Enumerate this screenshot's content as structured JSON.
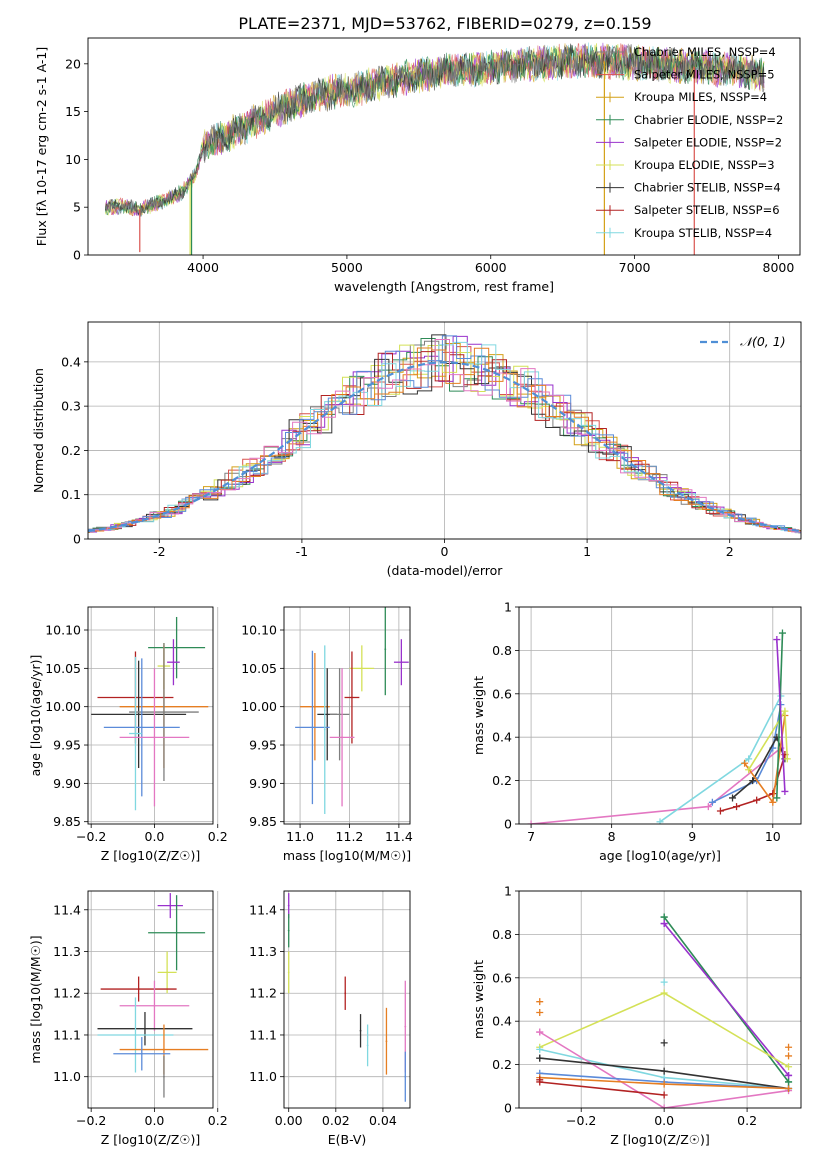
{
  "figure": {
    "title": "PLATE=2371, MJD=53762, FIBERID=0279, z=0.159"
  },
  "colors": {
    "Chabrier MILES": "#7f7f7f",
    "Salpeter MILES": "#d9534f",
    "Kroupa MILES": "#d4a017",
    "Chabrier ELODIE": "#2e8b57",
    "Salpeter ELODIE": "#9932cc",
    "Kroupa ELODIE": "#d4e157",
    "Chabrier STELIB": "#333333",
    "Salpeter STELIB": "#b22222",
    "Kroupa STELIB": "#80d8e0",
    "extra_blue": "#5b8bd9",
    "extra_orange": "#e67e22",
    "extra_pink": "#e377c2",
    "normal_curve": "#4f8fd6"
  },
  "chart_data": [
    {
      "id": "spectrum",
      "type": "line",
      "title": "PLATE=2371, MJD=53762, FIBERID=0279, z=0.159",
      "xlabel": "wavelength [Angstrom, rest frame]",
      "ylabel": "Flux [f_λ 10^-17 erg cm^-2 s^-1 A^-1]",
      "xlim": [
        3200,
        8150
      ],
      "ylim": [
        0,
        22.7
      ],
      "xticks": [
        4000,
        5000,
        6000,
        7000,
        8000
      ],
      "yticks": [
        0,
        5,
        10,
        15,
        20
      ],
      "legend_position": "top-right",
      "legend": [
        {
          "label": "Chabrier MILES, N_SSP=4",
          "color": "#7f7f7f"
        },
        {
          "label": "Salpeter MILES, N_SSP=5",
          "color": "#d9534f"
        },
        {
          "label": "Kroupa MILES, N_SSP=4",
          "color": "#d4a017"
        },
        {
          "label": "Chabrier ELODIE, N_SSP=2",
          "color": "#2e8b57"
        },
        {
          "label": "Salpeter ELODIE, N_SSP=2",
          "color": "#9932cc"
        },
        {
          "label": "Kroupa ELODIE, N_SSP=3",
          "color": "#d4e157"
        },
        {
          "label": "Chabrier STELIB, N_SSP=4",
          "color": "#333333"
        },
        {
          "label": "Salpeter STELIB, N_SSP=6",
          "color": "#b22222"
        },
        {
          "label": "Kroupa STELIB, N_SSP=4",
          "color": "#80d8e0"
        }
      ],
      "continuum": {
        "x": [
          3320,
          3450,
          3560,
          3700,
          3850,
          3950,
          4000,
          4100,
          4300,
          4500,
          4700,
          4900,
          5100,
          5300,
          5500,
          5700,
          5900,
          6100,
          6300,
          6500,
          6700,
          6900,
          7100,
          7300,
          7500,
          7700,
          7900
        ],
        "y": [
          5.0,
          5.1,
          4.8,
          5.5,
          6.5,
          8.5,
          11.5,
          12.0,
          13.5,
          15.0,
          16.3,
          17.0,
          17.5,
          18.2,
          18.8,
          19.3,
          19.5,
          19.8,
          20.0,
          20.2,
          20.3,
          20.2,
          20.0,
          19.8,
          19.6,
          19.3,
          18.8
        ]
      },
      "spikes": [
        {
          "x": 3560,
          "y": 0.3,
          "color": "#d9534f"
        },
        {
          "x": 3910,
          "y": 0.0,
          "color": "#d4e157"
        },
        {
          "x": 3920,
          "y": 0.0,
          "color": "#2e8b57"
        },
        {
          "x": 6790,
          "y": 0.0,
          "color": "#d4a017"
        },
        {
          "x": 7415,
          "y": 0.0,
          "color": "#d9534f"
        }
      ]
    },
    {
      "id": "residuals",
      "type": "bar",
      "xlabel": "(data-model)/error",
      "ylabel": "Normed distribution",
      "xlim": [
        -2.5,
        2.5
      ],
      "ylim": [
        0,
        0.49
      ],
      "xticks": [
        -2,
        -1,
        0,
        1,
        2
      ],
      "yticks": [
        0.0,
        0.1,
        0.2,
        0.3,
        0.4
      ],
      "grid": true,
      "legend_position": "top-right",
      "legend": [
        {
          "label": "𝒩(0, 1)",
          "color": "#4f8fd6",
          "style": "dashed"
        }
      ],
      "bin_width": 0.1,
      "normal": {
        "mean": 0,
        "sd": 1
      }
    },
    {
      "id": "age_vs_Z",
      "type": "scatter",
      "xlabel": "Z [log10(Z/Z☉)]",
      "ylabel": "age [log10(age/yr)]",
      "xlim": [
        -0.21,
        0.185
      ],
      "ylim": [
        9.847,
        10.13
      ],
      "xticks": [
        -0.2,
        0.0,
        0.2
      ],
      "xticklabels": [
        "−0.2",
        "0.0",
        "0.2"
      ],
      "yticks": [
        9.85,
        9.9,
        9.95,
        10.0,
        10.05,
        10.1
      ],
      "yticklabels": [
        "9.85",
        "9.90",
        "9.95",
        "10.00",
        "10.05",
        "10.10"
      ],
      "grid": true,
      "points": [
        {
          "series": "Chabrier ELODIE",
          "color": "#2e8b57",
          "x": 0.07,
          "xerr": 0.09,
          "y": 10.077,
          "yerr": 0.04
        },
        {
          "series": "Salpeter ELODIE",
          "color": "#9932cc",
          "x": 0.06,
          "xerr": 0.02,
          "y": 10.058,
          "yerr": 0.03
        },
        {
          "series": "Kroupa ELODIE",
          "color": "#d4e157",
          "x": 0.03,
          "xerr": 0.02,
          "y": 10.053,
          "yerr": 0.03
        },
        {
          "series": "Salpeter STELIB",
          "color": "#b22222",
          "x": -0.06,
          "xerr": 0.12,
          "y": 10.012,
          "yerr": 0.06
        },
        {
          "series": "Salpeter MILES",
          "color": "#e67e22",
          "x": 0.03,
          "xerr": 0.14,
          "y": 10.0,
          "yerr": 0.08
        },
        {
          "series": "Chabrier STELIB",
          "color": "#333333",
          "x": -0.05,
          "xerr": 0.15,
          "y": 9.99,
          "yerr": 0.07
        },
        {
          "series": "Chabrier MILES",
          "color": "#7f7f7f",
          "x": 0.03,
          "xerr": 0.11,
          "y": 9.993,
          "yerr": 0.09
        },
        {
          "series": "Kroupa MILES",
          "color": "#5b8bd9",
          "x": -0.04,
          "xerr": 0.12,
          "y": 9.973,
          "yerr": 0.09
        },
        {
          "series": "Kroupa STELIB",
          "color": "#80d8e0",
          "x": -0.06,
          "xerr": 0.02,
          "y": 9.965,
          "yerr": 0.1
        },
        {
          "series": "extra",
          "color": "#e377c2",
          "x": 0.0,
          "xerr": 0.11,
          "y": 9.96,
          "yerr": 0.09
        }
      ]
    },
    {
      "id": "age_vs_mass",
      "type": "scatter",
      "xlabel": "mass [log10(M/M☉)]",
      "ylabel": "",
      "xlim": [
        10.935,
        11.445
      ],
      "ylim": [
        9.847,
        10.13
      ],
      "xticks": [
        11.0,
        11.2,
        11.4
      ],
      "xticklabels": [
        "11.0",
        "11.2",
        "11.4"
      ],
      "yticks": [
        9.85,
        9.9,
        9.95,
        10.0,
        10.05,
        10.1
      ],
      "yticklabels": [
        "9.85",
        "9.90",
        "9.95",
        "10.00",
        "10.05",
        "10.10"
      ],
      "grid": true,
      "points": [
        {
          "color": "#2e8b57",
          "x": 11.345,
          "xerr": 0.0,
          "y": 10.075,
          "yerr": 0.06
        },
        {
          "color": "#9932cc",
          "x": 11.41,
          "xerr": 0.03,
          "y": 10.058,
          "yerr": 0.03
        },
        {
          "color": "#d4e157",
          "x": 11.25,
          "xerr": 0.05,
          "y": 10.05,
          "yerr": 0.03
        },
        {
          "color": "#b22222",
          "x": 11.21,
          "xerr": 0.03,
          "y": 10.012,
          "yerr": 0.06
        },
        {
          "color": "#e67e22",
          "x": 11.06,
          "xerr": 0.06,
          "y": 10.0,
          "yerr": 0.07
        },
        {
          "color": "#333333",
          "x": 11.11,
          "xerr": 0.04,
          "y": 9.99,
          "yerr": 0.06
        },
        {
          "color": "#7f7f7f",
          "x": 11.16,
          "xerr": 0.04,
          "y": 9.99,
          "yerr": 0.06
        },
        {
          "color": "#5b8bd9",
          "x": 11.05,
          "xerr": 0.07,
          "y": 9.973,
          "yerr": 0.1
        },
        {
          "color": "#80d8e0",
          "x": 11.1,
          "xerr": 0.0,
          "y": 9.97,
          "yerr": 0.11
        },
        {
          "color": "#e377c2",
          "x": 11.17,
          "xerr": 0.05,
          "y": 9.96,
          "yerr": 0.09
        }
      ]
    },
    {
      "id": "weight_vs_age",
      "type": "line",
      "xlabel": "age [log10(age/yr)]",
      "ylabel": "mass weight",
      "xlim": [
        6.85,
        10.35
      ],
      "ylim": [
        0,
        1.0
      ],
      "xticks": [
        7,
        8,
        9,
        10
      ],
      "yticks": [
        0.0,
        0.2,
        0.4,
        0.6,
        0.8,
        1.0
      ],
      "grid": true,
      "series": [
        {
          "color": "#e377c2",
          "x": [
            7.0,
            9.2,
            10.1
          ],
          "y": [
            0.0,
            0.08,
            0.35
          ]
        },
        {
          "color": "#80d8e0",
          "x": [
            8.6,
            9.7,
            10.1
          ],
          "y": [
            0.01,
            0.3,
            0.59
          ]
        },
        {
          "color": "#5b8bd9",
          "x": [
            9.25,
            9.8,
            10.0,
            10.1
          ],
          "y": [
            0.1,
            0.2,
            0.35,
            0.55
          ]
        },
        {
          "color": "#333333",
          "x": [
            9.5,
            9.75,
            10.05,
            10.15
          ],
          "y": [
            0.12,
            0.2,
            0.4,
            0.3
          ]
        },
        {
          "color": "#b22222",
          "x": [
            9.35,
            9.55,
            9.8,
            10.0,
            10.15
          ],
          "y": [
            0.06,
            0.08,
            0.11,
            0.14,
            0.32
          ]
        },
        {
          "color": "#e67e22",
          "x": [
            9.65,
            10.0,
            10.15
          ],
          "y": [
            0.28,
            0.1,
            0.5
          ]
        },
        {
          "color": "#d4e157",
          "x": [
            9.7,
            10.15,
            10.18
          ],
          "y": [
            0.25,
            0.52,
            0.3
          ]
        },
        {
          "color": "#2e8b57",
          "x": [
            10.05,
            10.12
          ],
          "y": [
            0.12,
            0.88
          ]
        },
        {
          "color": "#9932cc",
          "x": [
            10.05,
            10.15
          ],
          "y": [
            0.85,
            0.15
          ]
        }
      ]
    },
    {
      "id": "mass_vs_Z",
      "type": "scatter",
      "xlabel": "Z [log10(Z/Z☉)]",
      "ylabel": "mass [log10(M/M☉)]",
      "xlim": [
        -0.21,
        0.185
      ],
      "ylim": [
        10.925,
        11.445
      ],
      "xticks": [
        -0.2,
        0.0,
        0.2
      ],
      "xticklabels": [
        "−0.2",
        "0.0",
        "0.2"
      ],
      "yticks": [
        11.0,
        11.1,
        11.2,
        11.3,
        11.4
      ],
      "yticklabels": [
        "11.0",
        "11.1",
        "11.2",
        "11.3",
        "11.4"
      ],
      "grid": true,
      "points": [
        {
          "color": "#9932cc",
          "x": 0.05,
          "xerr": 0.04,
          "y": 11.41,
          "yerr": 0.03
        },
        {
          "color": "#2e8b57",
          "x": 0.07,
          "xerr": 0.09,
          "y": 11.345,
          "yerr": 0.09
        },
        {
          "color": "#d4e157",
          "x": 0.04,
          "xerr": 0.03,
          "y": 11.25,
          "yerr": 0.05
        },
        {
          "color": "#b22222",
          "x": -0.05,
          "xerr": 0.12,
          "y": 11.21,
          "yerr": 0.03
        },
        {
          "color": "#e377c2",
          "x": 0.0,
          "xerr": 0.11,
          "y": 11.17,
          "yerr": 0.06
        },
        {
          "color": "#333333",
          "x": -0.03,
          "xerr": 0.15,
          "y": 11.115,
          "yerr": 0.04
        },
        {
          "color": "#80d8e0",
          "x": -0.06,
          "xerr": 0.12,
          "y": 11.1,
          "yerr": 0.09
        },
        {
          "color": "#e67e22",
          "x": 0.03,
          "xerr": 0.14,
          "y": 11.065,
          "yerr": 0.06
        },
        {
          "color": "#5b8bd9",
          "x": -0.04,
          "xerr": 0.09,
          "y": 11.055,
          "yerr": 0.04
        },
        {
          "color": "#7f7f7f",
          "x": 0.03,
          "xerr": 0.0,
          "y": 11.0,
          "yerr": 0.05
        }
      ]
    },
    {
      "id": "mass_vs_ebv",
      "type": "scatter",
      "xlabel": "E(B-V)",
      "ylabel": "",
      "xlim": [
        -0.002,
        0.0515
      ],
      "ylim": [
        10.925,
        11.445
      ],
      "xticks": [
        0.0,
        0.02,
        0.04
      ],
      "xticklabels": [
        "0.00",
        "0.02",
        "0.04"
      ],
      "yticks": [
        11.0,
        11.1,
        11.2,
        11.3,
        11.4
      ],
      "yticklabels": [
        "11.0",
        "11.1",
        "11.2",
        "11.3",
        "11.4"
      ],
      "grid": true,
      "points": [
        {
          "color": "#9932cc",
          "x": 0.0,
          "y": 11.41,
          "yerr": 0.03
        },
        {
          "color": "#2e8b57",
          "x": 0.0,
          "y": 11.35,
          "yerr": 0.04
        },
        {
          "color": "#d4e157",
          "x": 0.0,
          "y": 11.25,
          "yerr": 0.05
        },
        {
          "color": "#b22222",
          "x": 0.024,
          "y": 11.2,
          "yerr": 0.04
        },
        {
          "color": "#333333",
          "x": 0.0305,
          "y": 11.11,
          "yerr": 0.04
        },
        {
          "color": "#80d8e0",
          "x": 0.0335,
          "y": 11.075,
          "yerr": 0.05
        },
        {
          "color": "#e67e22",
          "x": 0.0415,
          "y": 11.085,
          "yerr": 0.08
        },
        {
          "color": "#e377c2",
          "x": 0.0495,
          "y": 11.12,
          "yerr": 0.11
        },
        {
          "color": "#5b8bd9",
          "x": 0.0495,
          "y": 11.0,
          "yerr": 0.06
        }
      ]
    },
    {
      "id": "weight_vs_Z",
      "type": "line",
      "xlabel": "Z [log10(Z/Z☉)]",
      "ylabel": "mass weight",
      "xlim": [
        -0.35,
        0.33
      ],
      "ylim": [
        0,
        1.0
      ],
      "xticks": [
        -0.2,
        0.0,
        0.2
      ],
      "xticklabels": [
        "−0.2",
        "0.0",
        "0.2"
      ],
      "yticks": [
        0.0,
        0.2,
        0.4,
        0.6,
        0.8,
        1.0
      ],
      "grid": true,
      "series": [
        {
          "color": "#2e8b57",
          "x": [
            0.0,
            0.3
          ],
          "y": [
            0.88,
            0.12
          ]
        },
        {
          "color": "#9932cc",
          "x": [
            0.0,
            0.3
          ],
          "y": [
            0.85,
            0.15
          ]
        },
        {
          "color": "#d4e157",
          "x": [
            -0.3,
            0.0,
            0.3
          ],
          "y": [
            0.28,
            0.53,
            0.19
          ]
        },
        {
          "color": "#80d8e0",
          "x": [
            -0.3,
            0.0,
            0.3
          ],
          "y": [
            0.27,
            0.14,
            0.09
          ]
        },
        {
          "color": "#e377c2",
          "x": [
            -0.3,
            0.0,
            0.3
          ],
          "y": [
            0.35,
            0.0,
            0.08
          ]
        },
        {
          "color": "#333333",
          "x": [
            -0.3,
            0.0,
            0.3
          ],
          "y": [
            0.23,
            0.17,
            0.09
          ]
        },
        {
          "color": "#5b8bd9",
          "x": [
            -0.3,
            0.0,
            0.3
          ],
          "y": [
            0.16,
            0.12,
            0.09
          ]
        },
        {
          "color": "#e67e22",
          "x": [
            -0.3,
            0.0,
            0.3
          ],
          "y": [
            0.14,
            0.11,
            0.09
          ]
        },
        {
          "color": "#b22222",
          "x": [
            -0.3,
            0.0
          ],
          "y": [
            0.12,
            0.06
          ]
        }
      ],
      "markers": [
        {
          "color": "#e67e22",
          "x": -0.3,
          "y": 0.49
        },
        {
          "color": "#e67e22",
          "x": -0.3,
          "y": 0.44
        },
        {
          "color": "#e377c2",
          "x": -0.3,
          "y": 0.35
        },
        {
          "color": "#333333",
          "x": -0.3,
          "y": 0.23
        },
        {
          "color": "#b22222",
          "x": -0.3,
          "y": 0.13
        },
        {
          "color": "#2e8b57",
          "x": 0.0,
          "y": 0.88
        },
        {
          "color": "#9932cc",
          "x": 0.0,
          "y": 0.85
        },
        {
          "color": "#80d8e0",
          "x": 0.0,
          "y": 0.58
        },
        {
          "color": "#333333",
          "x": 0.0,
          "y": 0.3
        },
        {
          "color": "#e67e22",
          "x": 0.3,
          "y": 0.28
        },
        {
          "color": "#e67e22",
          "x": 0.3,
          "y": 0.24
        },
        {
          "color": "#9932cc",
          "x": 0.3,
          "y": 0.15
        },
        {
          "color": "#2e8b57",
          "x": 0.3,
          "y": 0.12
        }
      ]
    }
  ]
}
